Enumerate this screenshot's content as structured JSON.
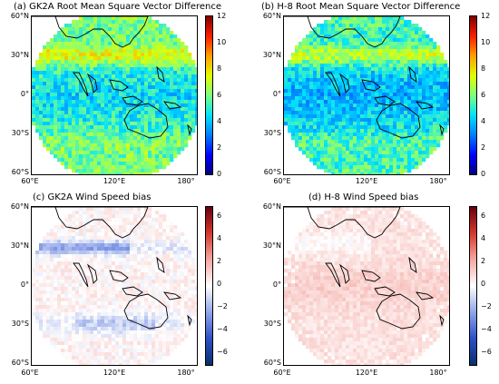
{
  "colors": {
    "rmsvd_scale": [
      "#00007f",
      "#0000ff",
      "#0080ff",
      "#00e0ff",
      "#7fff7f",
      "#e0ff00",
      "#ff9f00",
      "#ff2000",
      "#7f0000"
    ],
    "bias_scale": [
      "#08306b",
      "#3050c8",
      "#8ea3e8",
      "#ffffff",
      "#f4a6a0",
      "#d63a2f",
      "#67000d"
    ],
    "coast": "#000000"
  },
  "chart_data": [
    {
      "type": "heatmap",
      "title": "(a) GK2A Root Mean Square Vector Difference",
      "lat_ticks": [
        "60°N",
        "30°N",
        "0°",
        "30°S",
        "60°S"
      ],
      "lon_ticks": [
        "60°E",
        "120°E",
        "180°"
      ],
      "colorbar_ticks": [
        "12",
        "10",
        "8",
        "6",
        "4",
        "2",
        "0"
      ],
      "clim": [
        0,
        12
      ],
      "variable": "rmsvd",
      "satellite": "GK2A"
    },
    {
      "type": "heatmap",
      "title": "(b) H-8 Root Mean Square Vector Difference",
      "lat_ticks": [
        "60°N",
        "30°N",
        "0°",
        "30°S",
        "60°S"
      ],
      "lon_ticks": [
        "60°E",
        "120°E",
        "180°"
      ],
      "colorbar_ticks": [
        "12",
        "10",
        "8",
        "6",
        "4",
        "2",
        "0"
      ],
      "clim": [
        0,
        12
      ],
      "variable": "rmsvd",
      "satellite": "H-8"
    },
    {
      "type": "heatmap",
      "title": "(c) GK2A Wind Speed bias",
      "lat_ticks": [
        "60°N",
        "30°N",
        "0°",
        "30°S",
        "60°S"
      ],
      "lon_ticks": [
        "60°E",
        "120°E",
        "180°"
      ],
      "colorbar_ticks": [
        "6",
        "4",
        "2",
        "0",
        "−2",
        "−4",
        "−6"
      ],
      "clim": [
        -7,
        7
      ],
      "variable": "bias",
      "satellite": "GK2A"
    },
    {
      "type": "heatmap",
      "title": "(d) H-8 Wind Speed bias",
      "lat_ticks": [
        "60°N",
        "30°N",
        "0°",
        "30°S",
        "60°S"
      ],
      "lon_ticks": [
        "60°E",
        "120°E",
        "180°"
      ],
      "colorbar_ticks": [
        "6",
        "4",
        "2",
        "0",
        "−2",
        "−4",
        "−6"
      ],
      "clim": [
        -7,
        7
      ],
      "variable": "bias",
      "satellite": "H-8"
    }
  ]
}
